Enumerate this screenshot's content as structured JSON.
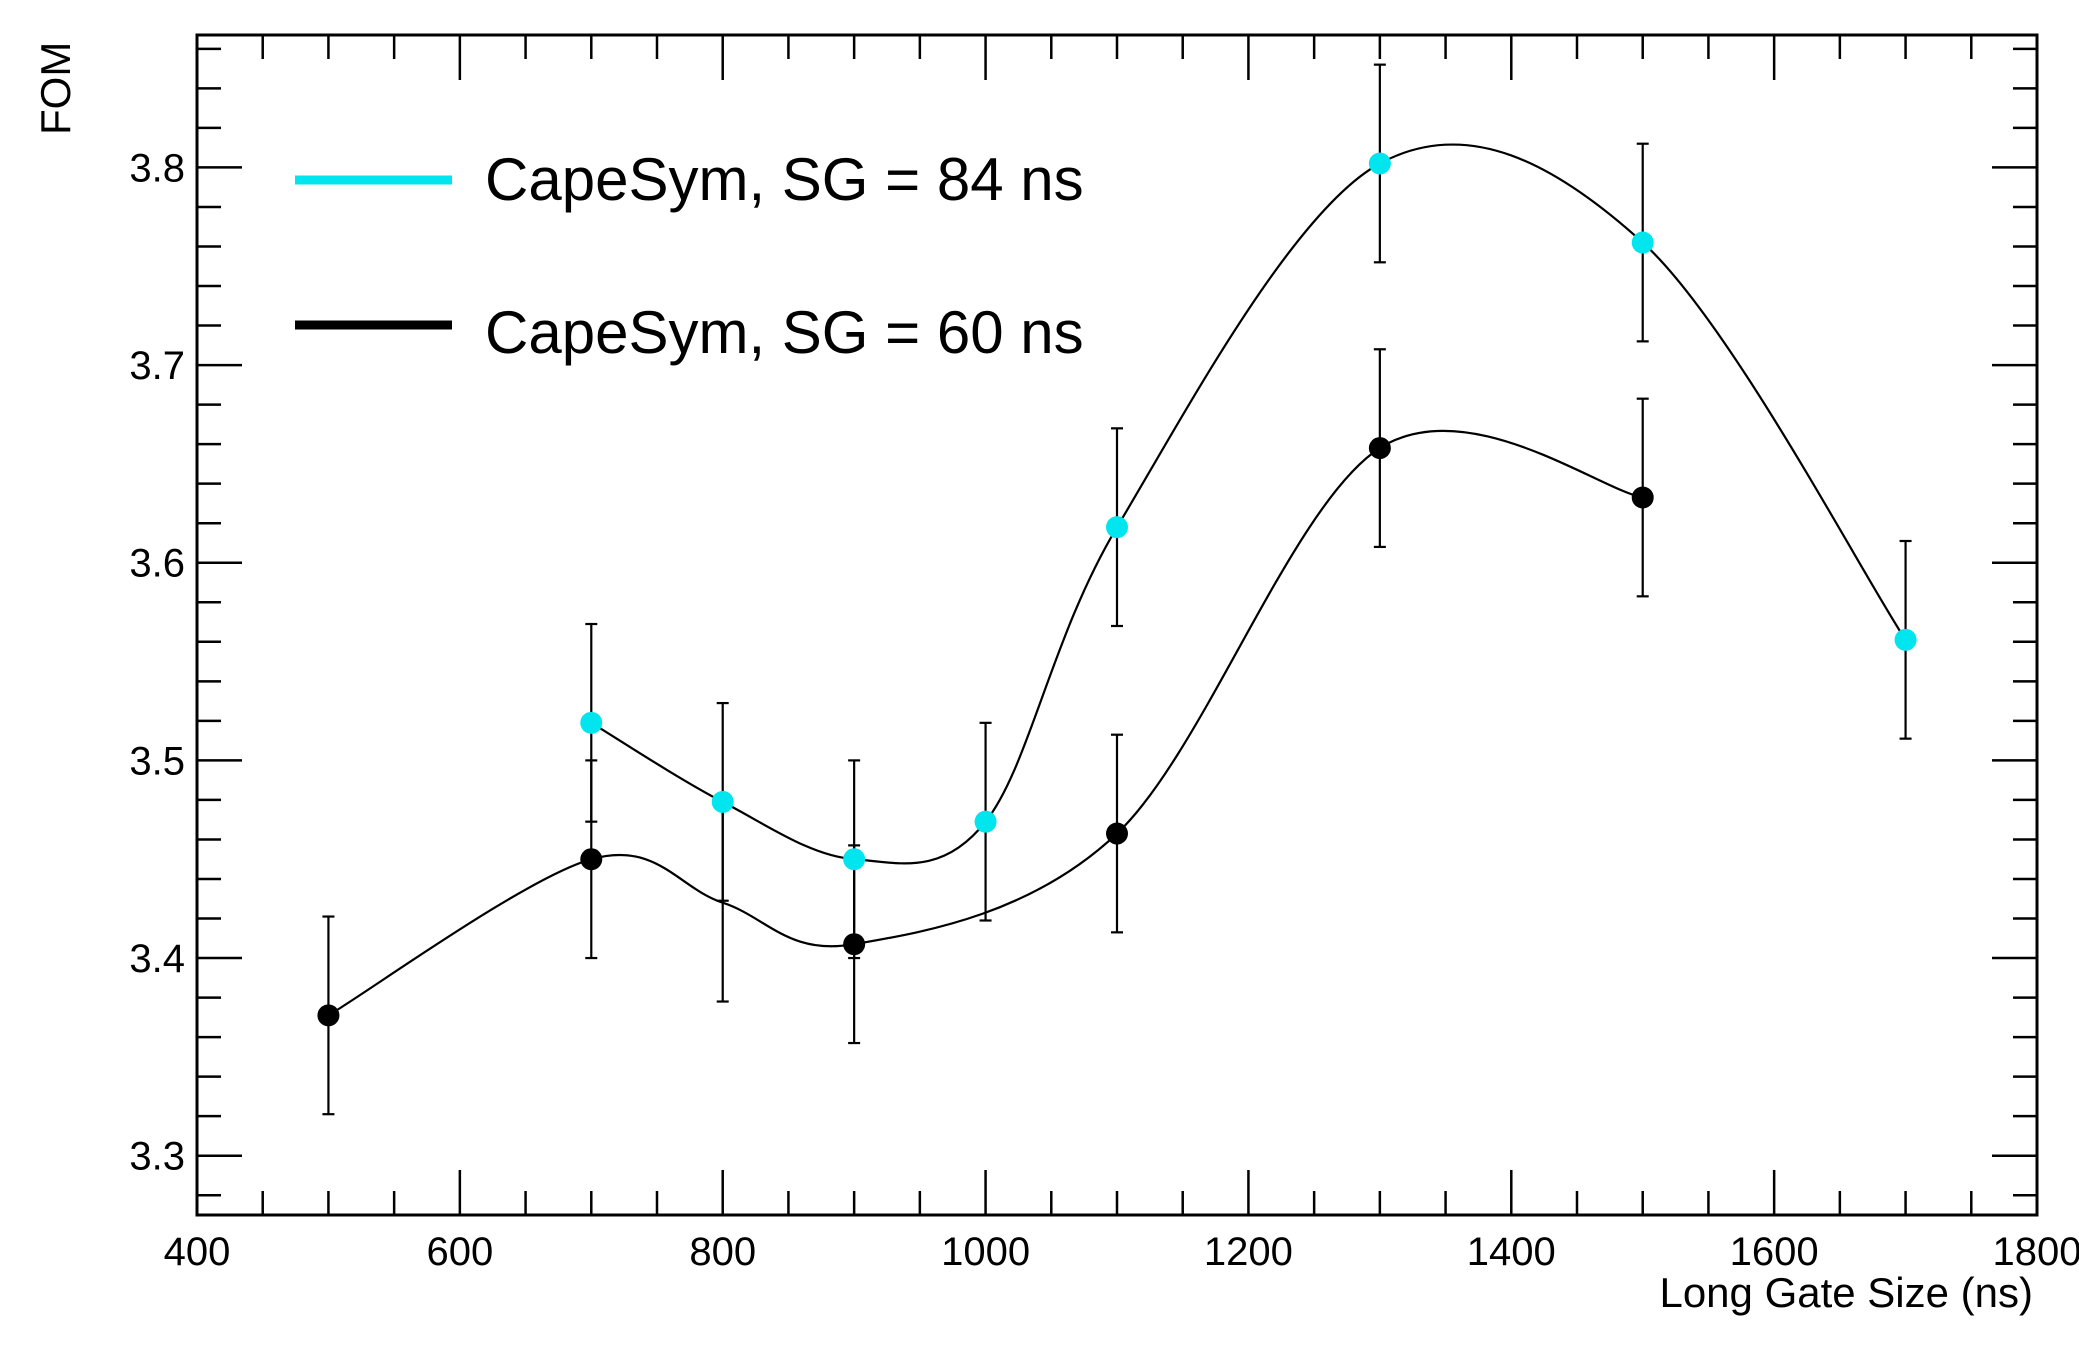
{
  "chart_data": {
    "type": "scatter",
    "title": "",
    "xlabel": "Long Gate Size (ns)",
    "ylabel": "FOM",
    "xlim": [
      400,
      1800
    ],
    "ylim": [
      3.27,
      3.867
    ],
    "x_major_ticks": [
      400,
      600,
      800,
      1000,
      1200,
      1400,
      1600,
      1800
    ],
    "x_tick_labels": [
      "400",
      "600",
      "800",
      "1000",
      "1200",
      "1400",
      "1600",
      "1800"
    ],
    "y_major_ticks": [
      3.3,
      3.4,
      3.5,
      3.6,
      3.7,
      3.8
    ],
    "y_tick_labels": [
      "3.3",
      "3.4",
      "3.5",
      "3.6",
      "3.7",
      "3.8"
    ],
    "grid": false,
    "legend_position": "top-left",
    "series": [
      {
        "name": "CapeSym, SG = 84 ns",
        "color": "#00e5ee",
        "x": [
          700,
          800,
          900,
          1000,
          1100,
          1300,
          1500,
          1700
        ],
        "y": [
          3.519,
          3.479,
          3.45,
          3.469,
          3.618,
          3.802,
          3.762,
          3.561
        ],
        "err": [
          0.05,
          0.05,
          0.05,
          0.05,
          0.05,
          0.05,
          0.05,
          0.05
        ],
        "curve_color": "#000000"
      },
      {
        "name": "CapeSym, SG = 60 ns",
        "color": "#000000",
        "x": [
          500,
          700,
          800,
          900,
          1100,
          1300,
          1500
        ],
        "y": [
          3.371,
          3.45,
          3.428,
          3.407,
          3.463,
          3.658,
          3.633
        ],
        "err": [
          0.05,
          0.05,
          0.05,
          0.05,
          0.05,
          0.05,
          0.05
        ],
        "hidden_marker_x": [
          800
        ],
        "curve_color": "#000000"
      }
    ]
  }
}
